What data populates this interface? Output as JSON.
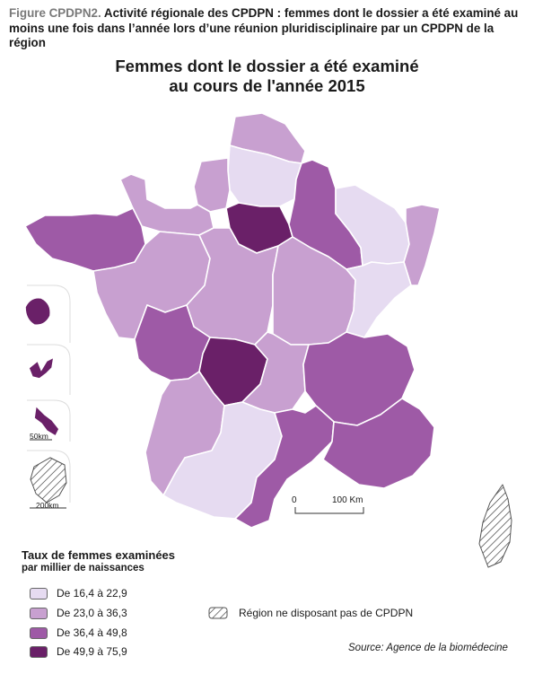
{
  "caption": {
    "label": "Figure CPDPN2.",
    "text": " Activité régionale des CPDPN : femmes dont le dossier a été examiné au moins une fois dans l’année lors d’une réunion pluridisciplinaire par un CPDPN de la région"
  },
  "title": {
    "line1": "Femmes dont le dossier a été examiné",
    "line2": "au cours de l'année 2015"
  },
  "colors": {
    "class1": "#e6dbf1",
    "class2": "#c8a0d0",
    "class3": "#9e5aa6",
    "class4": "#6a2068",
    "border": "#ffffff",
    "outline": "#555555"
  },
  "legend": {
    "title": "Taux de femmes examinées",
    "subtitle": "par millier de naissances",
    "items": [
      {
        "label": "De 16,4 à 22,9",
        "color": "#e6dbf1"
      },
      {
        "label": "De 23,0 à 36,3",
        "color": "#c8a0d0"
      },
      {
        "label": "De 36,4 à 49,8",
        "color": "#9e5aa6"
      },
      {
        "label": "De 49,9 à 75,9",
        "color": "#6a2068"
      }
    ],
    "no_cpdpn": "Région ne disposant pas de CPDPN"
  },
  "scale": {
    "start": "0",
    "end": "100 Km"
  },
  "insets": {
    "scale_small": "50km",
    "scale_large": "200km"
  },
  "source": "Source: Agence de la biomédecine"
}
